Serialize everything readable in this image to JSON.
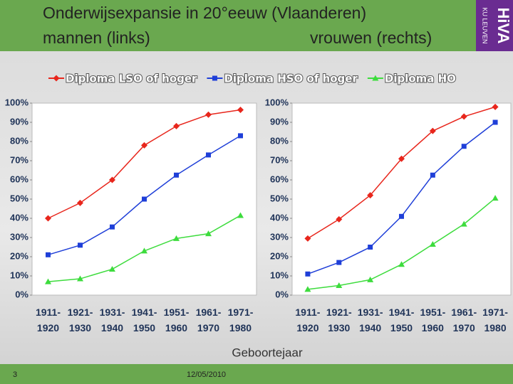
{
  "title": "Onderwijsexpansie in 20°eeuw (Vlaanderen)",
  "x_label": "Geboortejaar",
  "logo": {
    "name": "HiVA",
    "org": "KU LEUVEN"
  },
  "footer": {
    "page": "3",
    "date": "12/05/2010"
  },
  "chart_data": [
    {
      "type": "line",
      "title": "mannen (links)",
      "categories": [
        "1911-1920",
        "1921-1930",
        "1931-1940",
        "1941-1950",
        "1951-1960",
        "1961-1970",
        "1971-1980"
      ],
      "ylim": [
        0,
        100
      ],
      "yticks": [
        {
          "value": 0,
          "label": "0%"
        },
        {
          "value": 10,
          "label": "10%"
        },
        {
          "value": 20,
          "label": "20%"
        },
        {
          "value": 30,
          "label": "30%"
        },
        {
          "value": 40,
          "label": "40%"
        },
        {
          "value": 50,
          "label": "50%"
        },
        {
          "value": 60,
          "label": "60%"
        },
        {
          "value": 70,
          "label": "70%"
        },
        {
          "value": 80,
          "label": "80%"
        },
        {
          "value": 90,
          "label": "90%"
        },
        {
          "value": 100,
          "label": "100%"
        }
      ],
      "series": [
        {
          "name": "Diploma LSO of hoger",
          "color": "#e8261c",
          "marker": "diamond",
          "values": [
            40,
            48,
            60,
            78,
            88,
            94,
            96.5
          ]
        },
        {
          "name": "Diploma HSO of hoger",
          "color": "#1f3fd8",
          "marker": "square",
          "values": [
            21,
            26,
            35.5,
            50,
            62.5,
            73,
            83
          ]
        },
        {
          "name": "Diploma HO",
          "color": "#3ddc3d",
          "marker": "triangle",
          "values": [
            7,
            8.5,
            13.5,
            23,
            29.5,
            32,
            41.5
          ]
        }
      ]
    },
    {
      "type": "line",
      "title": "vrouwen (rechts)",
      "categories": [
        "1911-1920",
        "1921-1930",
        "1931-1940",
        "1941-1950",
        "1951-1960",
        "1961-1970",
        "1971-1980"
      ],
      "ylim": [
        0,
        100
      ],
      "yticks": [
        {
          "value": 0,
          "label": "0%"
        },
        {
          "value": 10,
          "label": "10%"
        },
        {
          "value": 20,
          "label": "20%"
        },
        {
          "value": 30,
          "label": "30%"
        },
        {
          "value": 40,
          "label": "40%"
        },
        {
          "value": 50,
          "label": "50%"
        },
        {
          "value": 60,
          "label": "60%"
        },
        {
          "value": 70,
          "label": "70%"
        },
        {
          "value": 80,
          "label": "80%"
        },
        {
          "value": 90,
          "label": "90%"
        },
        {
          "value": 100,
          "label": "100%"
        }
      ],
      "series": [
        {
          "color": "#e8261c",
          "marker": "diamond",
          "values": [
            29.5,
            39.5,
            52,
            71,
            85.5,
            93,
            98
          ]
        },
        {
          "color": "#1f3fd8",
          "marker": "square",
          "values": [
            11,
            17,
            25,
            41,
            62.5,
            77.5,
            90
          ]
        },
        {
          "color": "#3ddc3d",
          "marker": "triangle",
          "values": [
            3,
            5,
            8,
            16,
            26.5,
            37,
            50.5
          ]
        }
      ]
    }
  ]
}
